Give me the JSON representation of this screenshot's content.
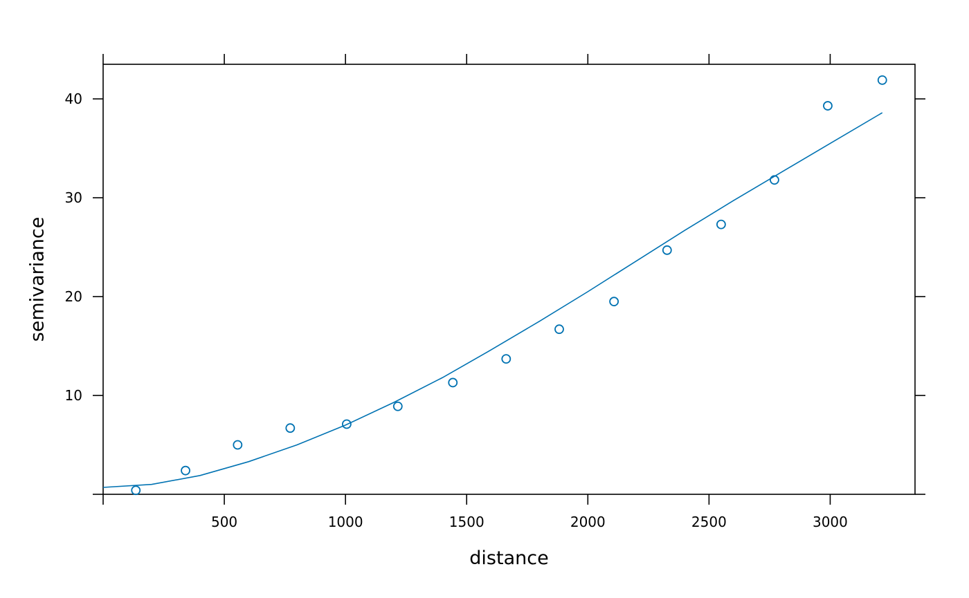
{
  "chart_data": {
    "type": "scatter",
    "xlabel": "distance",
    "ylabel": "semivariance",
    "xlim": [
      0,
      3350
    ],
    "ylim": [
      0,
      43.5
    ],
    "x_ticks": [
      500,
      1000,
      1500,
      2000,
      2500,
      3000
    ],
    "y_ticks": [
      10,
      20,
      30,
      40
    ],
    "grid": false,
    "legend": "none",
    "color": "#0072B2",
    "points": [
      {
        "x": 135,
        "y": 0.4
      },
      {
        "x": 340,
        "y": 2.4
      },
      {
        "x": 555,
        "y": 5.0
      },
      {
        "x": 772,
        "y": 6.7
      },
      {
        "x": 1005,
        "y": 7.1
      },
      {
        "x": 1216,
        "y": 8.9
      },
      {
        "x": 1443,
        "y": 11.3
      },
      {
        "x": 1663,
        "y": 13.7
      },
      {
        "x": 1882,
        "y": 16.7
      },
      {
        "x": 2108,
        "y": 19.5
      },
      {
        "x": 2327,
        "y": 24.7
      },
      {
        "x": 2550,
        "y": 27.3
      },
      {
        "x": 2770,
        "y": 31.8
      },
      {
        "x": 2990,
        "y": 39.3
      },
      {
        "x": 3215,
        "y": 41.9
      }
    ],
    "fitted_line": [
      {
        "x": 0,
        "y": 0.7
      },
      {
        "x": 200,
        "y": 1.0
      },
      {
        "x": 400,
        "y": 1.9
      },
      {
        "x": 600,
        "y": 3.3
      },
      {
        "x": 800,
        "y": 5.0
      },
      {
        "x": 1000,
        "y": 7.0
      },
      {
        "x": 1200,
        "y": 9.3
      },
      {
        "x": 1400,
        "y": 11.8
      },
      {
        "x": 1600,
        "y": 14.6
      },
      {
        "x": 1800,
        "y": 17.5
      },
      {
        "x": 2000,
        "y": 20.5
      },
      {
        "x": 2200,
        "y": 23.6
      },
      {
        "x": 2400,
        "y": 26.7
      },
      {
        "x": 2600,
        "y": 29.7
      },
      {
        "x": 2800,
        "y": 32.6
      },
      {
        "x": 3000,
        "y": 35.5
      },
      {
        "x": 3215,
        "y": 38.6
      }
    ]
  }
}
